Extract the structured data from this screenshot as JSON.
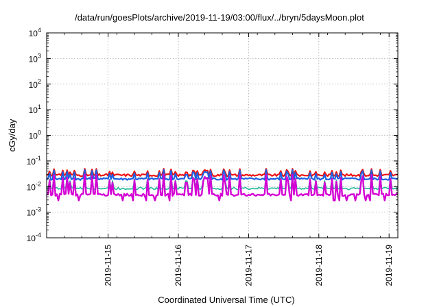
{
  "chart_data": {
    "type": "line",
    "title": "/data/run/goesPlots/archive/2019-11-19/03:00/flux/../bryn/5daysMoon.plot",
    "xlabel": "Coordinated Universal Time (UTC)",
    "ylabel": "cGy/day",
    "yscale": "log",
    "ylim": [
      0.0001,
      10000
    ],
    "xlim": [
      "2019-11-14T03:00",
      "2019-11-19T03:00"
    ],
    "x_ticks": [
      "2019-11-15",
      "2019-11-16",
      "2019-11-17",
      "2019-11-18",
      "2019-11-19"
    ],
    "y_ticks": [
      {
        "base": "10",
        "exp": "-4"
      },
      {
        "base": "10",
        "exp": "-3"
      },
      {
        "base": "10",
        "exp": "-2"
      },
      {
        "base": "10",
        "exp": "-1"
      },
      {
        "base": "10",
        "exp": "0"
      },
      {
        "base": "10",
        "exp": "1"
      },
      {
        "base": "10",
        "exp": "2"
      },
      {
        "base": "10",
        "exp": "3"
      },
      {
        "base": "10",
        "exp": "4"
      }
    ],
    "grid": true,
    "legend": "none",
    "series": [
      {
        "color": "#ee1111",
        "stroke_width": 2.2,
        "base": 0.028,
        "spike": 0.05,
        "x": [
          "2019-11-14T03:00",
          "2019-11-15T03:00",
          "2019-11-16T03:00",
          "2019-11-17T03:00",
          "2019-11-18T03:00",
          "2019-11-19T03:00"
        ],
        "y": [
          0.03,
          0.028,
          0.03,
          0.029,
          0.03,
          0.028
        ]
      },
      {
        "color": "#1f5fe0",
        "stroke_width": 2.2,
        "base": 0.02,
        "spike": 0.045,
        "x": [
          "2019-11-14T03:00",
          "2019-11-15T03:00",
          "2019-11-16T03:00",
          "2019-11-17T03:00",
          "2019-11-18T03:00",
          "2019-11-19T03:00"
        ],
        "y": [
          0.021,
          0.02,
          0.021,
          0.02,
          0.021,
          0.019
        ]
      },
      {
        "color": "#20b89a",
        "stroke_width": 1.6,
        "base": 0.0085,
        "spike": 0.03,
        "x": [
          "2019-11-14T03:00",
          "2019-11-15T03:00",
          "2019-11-16T03:00",
          "2019-11-17T03:00",
          "2019-11-18T03:00",
          "2019-11-19T03:00"
        ],
        "y": [
          0.0085,
          0.0082,
          0.0088,
          0.0084,
          0.0086,
          0.0083
        ]
      },
      {
        "color": "#d400d4",
        "stroke_width": 2.4,
        "base": 0.0048,
        "spike": 0.03,
        "x": [
          "2019-11-14T03:00",
          "2019-11-15T03:00",
          "2019-11-16T03:00",
          "2019-11-17T03:00",
          "2019-11-18T03:00",
          "2019-11-19T03:00"
        ],
        "y": [
          0.005,
          0.0047,
          0.005,
          0.0048,
          0.005,
          0.0046
        ]
      }
    ]
  }
}
